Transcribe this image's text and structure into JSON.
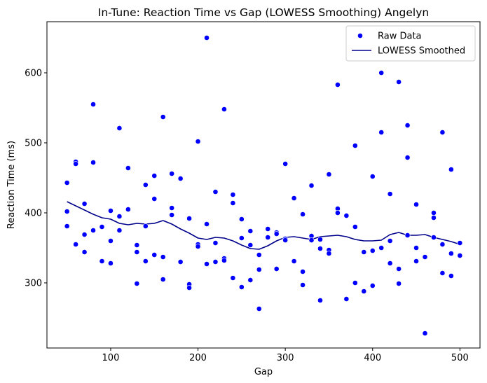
{
  "chart_data": {
    "type": "scatter",
    "title": "In-Tune: Reaction Time vs Gap (LOWESS Smoothing) Angelyn",
    "xlabel": "Gap",
    "ylabel": "Reaction Time (ms)",
    "xlim": [
      27,
      523
    ],
    "ylim": [
      207,
      673
    ],
    "xticks": [
      100,
      200,
      300,
      400,
      500
    ],
    "yticks": [
      300,
      400,
      500,
      600
    ],
    "grid": false,
    "legend_position": "top-right",
    "colors": {
      "scatter": "#0000ff",
      "line": "#00008b"
    },
    "series": [
      {
        "name": "Raw Data",
        "kind": "scatter",
        "points": [
          [
            50,
            443
          ],
          [
            50,
            402
          ],
          [
            50,
            381
          ],
          [
            60,
            473
          ],
          [
            60,
            470
          ],
          [
            60,
            355
          ],
          [
            70,
            413
          ],
          [
            70,
            369
          ],
          [
            70,
            344
          ],
          [
            80,
            555
          ],
          [
            80,
            472
          ],
          [
            80,
            375
          ],
          [
            90,
            380
          ],
          [
            90,
            331
          ],
          [
            100,
            403
          ],
          [
            100,
            360
          ],
          [
            100,
            328
          ],
          [
            110,
            521
          ],
          [
            110,
            395
          ],
          [
            110,
            375
          ],
          [
            120,
            464
          ],
          [
            120,
            405
          ],
          [
            130,
            354
          ],
          [
            130,
            344
          ],
          [
            130,
            299
          ],
          [
            140,
            440
          ],
          [
            140,
            381
          ],
          [
            140,
            331
          ],
          [
            150,
            453
          ],
          [
            150,
            420
          ],
          [
            150,
            340
          ],
          [
            160,
            537
          ],
          [
            160,
            337
          ],
          [
            160,
            305
          ],
          [
            170,
            456
          ],
          [
            170,
            407
          ],
          [
            170,
            397
          ],
          [
            180,
            449
          ],
          [
            180,
            330
          ],
          [
            190,
            392
          ],
          [
            190,
            298
          ],
          [
            190,
            293
          ],
          [
            200,
            502
          ],
          [
            200,
            355
          ],
          [
            200,
            352
          ],
          [
            210,
            650
          ],
          [
            210,
            384
          ],
          [
            210,
            327
          ],
          [
            220,
            430
          ],
          [
            220,
            357
          ],
          [
            220,
            330
          ],
          [
            230,
            548
          ],
          [
            230,
            335
          ],
          [
            230,
            332
          ],
          [
            240,
            426
          ],
          [
            240,
            414
          ],
          [
            240,
            307
          ],
          [
            250,
            391
          ],
          [
            250,
            364
          ],
          [
            250,
            294
          ],
          [
            260,
            374
          ],
          [
            260,
            354
          ],
          [
            260,
            304
          ],
          [
            270,
            340
          ],
          [
            270,
            319
          ],
          [
            270,
            263
          ],
          [
            280,
            377
          ],
          [
            280,
            365
          ],
          [
            290,
            372
          ],
          [
            290,
            370
          ],
          [
            290,
            320
          ],
          [
            300,
            470
          ],
          [
            300,
            363
          ],
          [
            300,
            361
          ],
          [
            310,
            421
          ],
          [
            310,
            331
          ],
          [
            320,
            398
          ],
          [
            320,
            316
          ],
          [
            320,
            297
          ],
          [
            330,
            439
          ],
          [
            330,
            367
          ],
          [
            330,
            361
          ],
          [
            340,
            362
          ],
          [
            340,
            349
          ],
          [
            340,
            275
          ],
          [
            350,
            455
          ],
          [
            350,
            347
          ],
          [
            350,
            342
          ],
          [
            360,
            583
          ],
          [
            360,
            406
          ],
          [
            360,
            400
          ],
          [
            370,
            396
          ],
          [
            370,
            277
          ],
          [
            380,
            496
          ],
          [
            380,
            380
          ],
          [
            380,
            300
          ],
          [
            390,
            344
          ],
          [
            390,
            288
          ],
          [
            400,
            452
          ],
          [
            400,
            346
          ],
          [
            400,
            296
          ],
          [
            410,
            600
          ],
          [
            410,
            515
          ],
          [
            410,
            350
          ],
          [
            420,
            427
          ],
          [
            420,
            360
          ],
          [
            420,
            328
          ],
          [
            430,
            587
          ],
          [
            430,
            320
          ],
          [
            430,
            299
          ],
          [
            440,
            525
          ],
          [
            440,
            479
          ],
          [
            440,
            368
          ],
          [
            450,
            412
          ],
          [
            450,
            350
          ],
          [
            450,
            331
          ],
          [
            460,
            337
          ],
          [
            460,
            228
          ],
          [
            470,
            400
          ],
          [
            470,
            393
          ],
          [
            470,
            365
          ],
          [
            480,
            515
          ],
          [
            480,
            355
          ],
          [
            480,
            314
          ],
          [
            490,
            462
          ],
          [
            490,
            342
          ],
          [
            490,
            310
          ],
          [
            500,
            357
          ],
          [
            500,
            339
          ]
        ]
      },
      {
        "name": "LOWESS Smoothed",
        "kind": "line",
        "points": [
          [
            50,
            416
          ],
          [
            60,
            410
          ],
          [
            70,
            404
          ],
          [
            80,
            398
          ],
          [
            90,
            393
          ],
          [
            100,
            391
          ],
          [
            110,
            385
          ],
          [
            120,
            383
          ],
          [
            130,
            385
          ],
          [
            140,
            384
          ],
          [
            150,
            385
          ],
          [
            160,
            389
          ],
          [
            170,
            384
          ],
          [
            180,
            377
          ],
          [
            190,
            371
          ],
          [
            200,
            364
          ],
          [
            210,
            362
          ],
          [
            220,
            365
          ],
          [
            230,
            364
          ],
          [
            240,
            360
          ],
          [
            250,
            354
          ],
          [
            260,
            349
          ],
          [
            270,
            348
          ],
          [
            280,
            353
          ],
          [
            290,
            360
          ],
          [
            300,
            365
          ],
          [
            310,
            366
          ],
          [
            320,
            364
          ],
          [
            330,
            362
          ],
          [
            340,
            366
          ],
          [
            350,
            367
          ],
          [
            360,
            368
          ],
          [
            370,
            366
          ],
          [
            380,
            362
          ],
          [
            390,
            360
          ],
          [
            400,
            360
          ],
          [
            410,
            361
          ],
          [
            420,
            369
          ],
          [
            430,
            372
          ],
          [
            440,
            368
          ],
          [
            450,
            368
          ],
          [
            460,
            369
          ],
          [
            470,
            365
          ],
          [
            480,
            362
          ],
          [
            490,
            359
          ],
          [
            500,
            355
          ]
        ]
      }
    ]
  }
}
